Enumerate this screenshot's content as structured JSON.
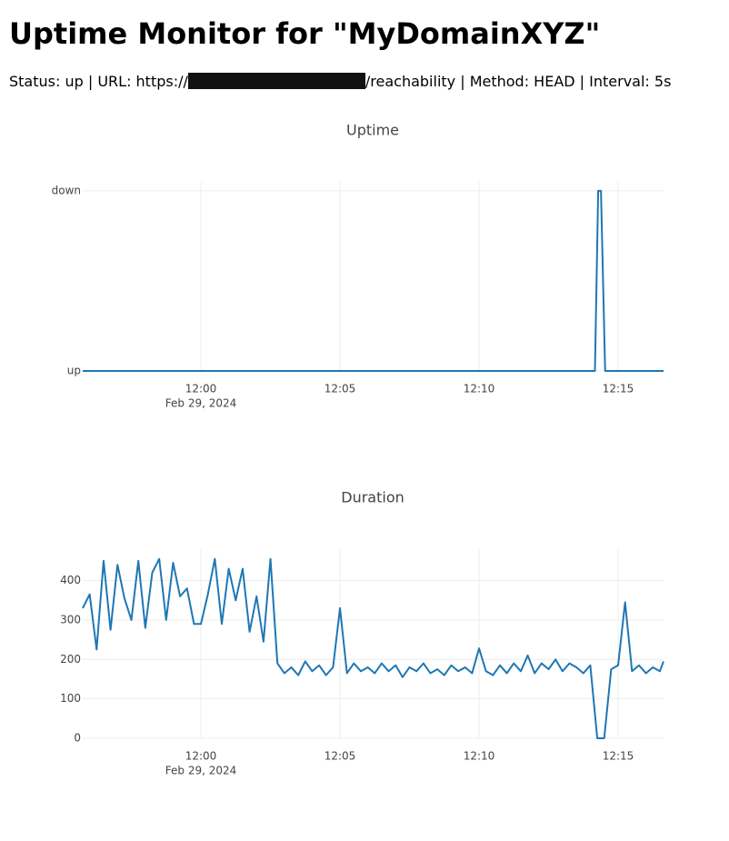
{
  "header": {
    "title": "Uptime Monitor for \"MyDomainXYZ\"",
    "status_before": "Status: up | URL: https://",
    "status_after": "/reachability | Method: HEAD | Interval: 5s"
  },
  "chart_data": [
    {
      "type": "line",
      "title": "Uptime",
      "color": "#1f77b4",
      "grid": true,
      "x": [
        "2024-02-29 11:55:45",
        "2024-02-29 12:14:10",
        "2024-02-29 12:14:17",
        "2024-02-29 12:14:23",
        "2024-02-29 12:14:32",
        "2024-02-29 12:16:38"
      ],
      "values": [
        0,
        0,
        1,
        1,
        0,
        0
      ],
      "xlim": [
        "2024-02-29 11:55:45",
        "2024-02-29 12:16:38"
      ],
      "xticks": [
        {
          "value": "2024-02-29 12:00:00",
          "label": "12:00"
        },
        {
          "value": "2024-02-29 12:05:00",
          "label": "12:05"
        },
        {
          "value": "2024-02-29 12:10:00",
          "label": "12:10"
        },
        {
          "value": "2024-02-29 12:15:00",
          "label": "12:15"
        }
      ],
      "x_date_label": "Feb 29, 2024",
      "ylim": [
        0,
        1.05
      ],
      "yticks": [
        {
          "value": 0,
          "label": "up"
        },
        {
          "value": 1,
          "label": "down"
        }
      ]
    },
    {
      "type": "line",
      "title": "Duration",
      "color": "#1f77b4",
      "grid": true,
      "x": [
        "2024-02-29 11:55:45",
        "2024-02-29 11:56:00",
        "2024-02-29 11:56:15",
        "2024-02-29 11:56:30",
        "2024-02-29 11:56:45",
        "2024-02-29 11:57:00",
        "2024-02-29 11:57:15",
        "2024-02-29 11:57:30",
        "2024-02-29 11:57:45",
        "2024-02-29 11:58:00",
        "2024-02-29 11:58:15",
        "2024-02-29 11:58:30",
        "2024-02-29 11:58:45",
        "2024-02-29 11:59:00",
        "2024-02-29 11:59:15",
        "2024-02-29 11:59:30",
        "2024-02-29 11:59:45",
        "2024-02-29 12:00:00",
        "2024-02-29 12:00:15",
        "2024-02-29 12:00:30",
        "2024-02-29 12:00:45",
        "2024-02-29 12:01:00",
        "2024-02-29 12:01:15",
        "2024-02-29 12:01:30",
        "2024-02-29 12:01:45",
        "2024-02-29 12:02:00",
        "2024-02-29 12:02:15",
        "2024-02-29 12:02:30",
        "2024-02-29 12:02:45",
        "2024-02-29 12:03:00",
        "2024-02-29 12:03:15",
        "2024-02-29 12:03:30",
        "2024-02-29 12:03:45",
        "2024-02-29 12:04:00",
        "2024-02-29 12:04:15",
        "2024-02-29 12:04:30",
        "2024-02-29 12:04:45",
        "2024-02-29 12:05:00",
        "2024-02-29 12:05:15",
        "2024-02-29 12:05:30",
        "2024-02-29 12:05:45",
        "2024-02-29 12:06:00",
        "2024-02-29 12:06:15",
        "2024-02-29 12:06:30",
        "2024-02-29 12:06:45",
        "2024-02-29 12:07:00",
        "2024-02-29 12:07:15",
        "2024-02-29 12:07:30",
        "2024-02-29 12:07:45",
        "2024-02-29 12:08:00",
        "2024-02-29 12:08:15",
        "2024-02-29 12:08:30",
        "2024-02-29 12:08:45",
        "2024-02-29 12:09:00",
        "2024-02-29 12:09:15",
        "2024-02-29 12:09:30",
        "2024-02-29 12:09:45",
        "2024-02-29 12:10:00",
        "2024-02-29 12:10:15",
        "2024-02-29 12:10:30",
        "2024-02-29 12:10:45",
        "2024-02-29 12:11:00",
        "2024-02-29 12:11:15",
        "2024-02-29 12:11:30",
        "2024-02-29 12:11:45",
        "2024-02-29 12:12:00",
        "2024-02-29 12:12:15",
        "2024-02-29 12:12:30",
        "2024-02-29 12:12:45",
        "2024-02-29 12:13:00",
        "2024-02-29 12:13:15",
        "2024-02-29 12:13:30",
        "2024-02-29 12:13:45",
        "2024-02-29 12:14:00",
        "2024-02-29 12:14:15",
        "2024-02-29 12:14:30",
        "2024-02-29 12:14:45",
        "2024-02-29 12:15:00",
        "2024-02-29 12:15:15",
        "2024-02-29 12:15:30",
        "2024-02-29 12:15:45",
        "2024-02-29 12:16:00",
        "2024-02-29 12:16:15",
        "2024-02-29 12:16:30",
        "2024-02-29 12:16:38"
      ],
      "values": [
        330,
        365,
        225,
        450,
        275,
        440,
        355,
        300,
        450,
        280,
        420,
        455,
        300,
        445,
        360,
        380,
        290,
        290,
        365,
        455,
        290,
        430,
        350,
        430,
        270,
        360,
        245,
        455,
        190,
        165,
        180,
        160,
        195,
        170,
        185,
        160,
        180,
        330,
        165,
        190,
        170,
        180,
        165,
        190,
        170,
        185,
        155,
        180,
        170,
        190,
        165,
        175,
        160,
        185,
        170,
        180,
        165,
        228,
        170,
        160,
        185,
        165,
        190,
        170,
        210,
        165,
        190,
        175,
        200,
        170,
        190,
        180,
        165,
        185,
        0,
        0,
        175,
        185,
        345,
        170,
        185,
        165,
        180,
        170,
        195
      ],
      "xlim": [
        "2024-02-29 11:55:45",
        "2024-02-29 12:16:38"
      ],
      "xticks": [
        {
          "value": "2024-02-29 12:00:00",
          "label": "12:00"
        },
        {
          "value": "2024-02-29 12:05:00",
          "label": "12:05"
        },
        {
          "value": "2024-02-29 12:10:00",
          "label": "12:10"
        },
        {
          "value": "2024-02-29 12:15:00",
          "label": "12:15"
        }
      ],
      "x_date_label": "Feb 29, 2024",
      "ylim": [
        0,
        482
      ],
      "yticks": [
        0,
        100,
        200,
        300,
        400
      ]
    }
  ]
}
